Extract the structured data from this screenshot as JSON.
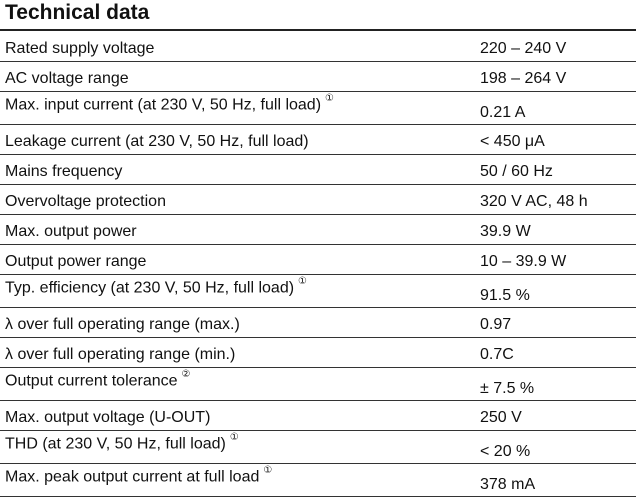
{
  "title": "Technical data",
  "rows": [
    {
      "label": "Rated supply voltage",
      "note": "",
      "value": "220 – 240 V"
    },
    {
      "label": "AC voltage range",
      "note": "",
      "value": "198 – 264 V"
    },
    {
      "label": "Max. input current (at 230 V, 50 Hz, full load)",
      "note": "①",
      "value": "0.21 A"
    },
    {
      "label": "Leakage current (at 230 V, 50 Hz, full load)",
      "note": "",
      "value": "< 450 μA"
    },
    {
      "label": "Mains frequency",
      "note": "",
      "value": "50 / 60 Hz"
    },
    {
      "label": "Overvoltage protection",
      "note": "",
      "value": "320 V AC, 48 h"
    },
    {
      "label": "Max. output power",
      "note": "",
      "value": "39.9 W"
    },
    {
      "label": "Output power range",
      "note": "",
      "value": "10 – 39.9 W"
    },
    {
      "label": "Typ. efficiency (at 230 V, 50 Hz, full load)",
      "note": "①",
      "value": "91.5 %"
    },
    {
      "label": "λ over full operating range (max.)",
      "note": "",
      "value": "0.97"
    },
    {
      "label": "λ over full operating range (min.)",
      "note": "",
      "value": "0.7C"
    },
    {
      "label": "Output current tolerance",
      "note": "②",
      "value": "± 7.5 %"
    },
    {
      "label": "Max. output voltage (U-OUT)",
      "note": "",
      "value": "250 V"
    },
    {
      "label": "THD (at 230 V, 50 Hz, full load)",
      "note": "①",
      "value": "< 20 %"
    },
    {
      "label": "Max. peak output current at full load",
      "note": "①",
      "value": "378 mA"
    }
  ]
}
